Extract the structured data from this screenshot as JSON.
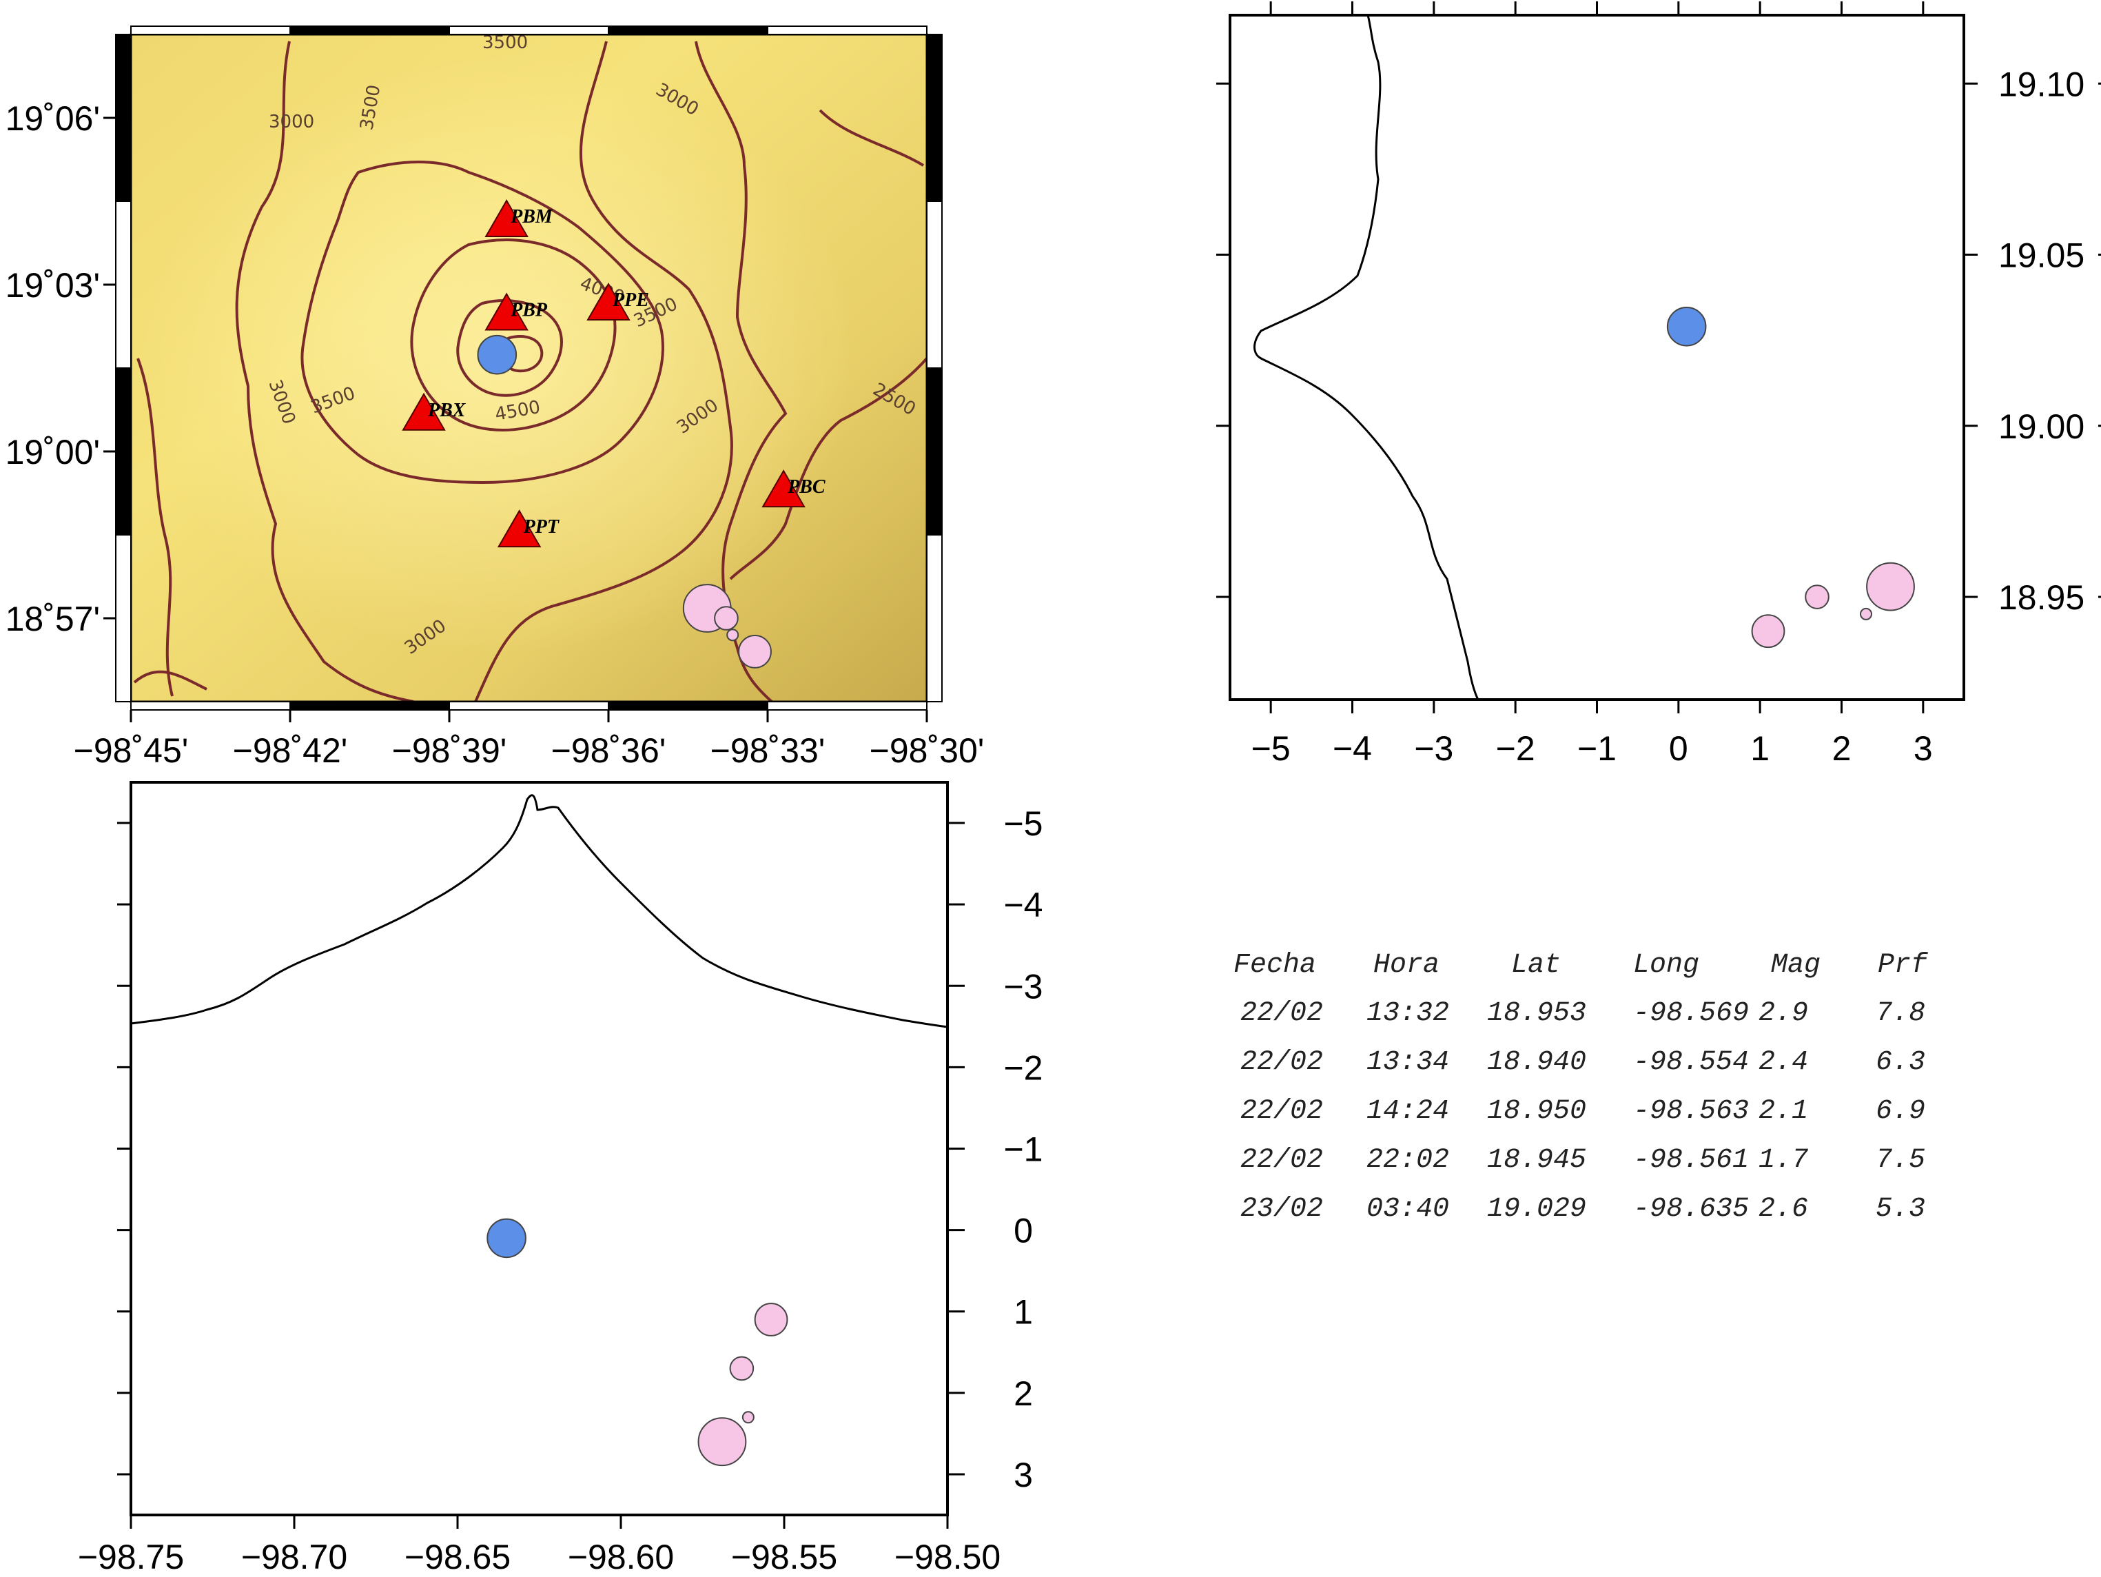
{
  "map": {
    "lon_ticks": [
      "−98˚45'",
      "−98˚42'",
      "−98˚39'",
      "−98˚36'",
      "−98˚33'",
      "−98˚30'"
    ],
    "lat_ticks": [
      "19˚06'",
      "19˚03'",
      "19˚00'",
      "18˚57'"
    ],
    "contour_labels": [
      "3500",
      "3500",
      "3000",
      "3000",
      "4000",
      "3500",
      "3000",
      "3500",
      "4500",
      "3000",
      "2500",
      "3000"
    ],
    "stations": [
      {
        "name": "PBM",
        "lon": -98.632,
        "lat": 19.069
      },
      {
        "name": "PBP",
        "lon": -98.632,
        "lat": 19.041
      },
      {
        "name": "PPE",
        "lon": -98.6,
        "lat": 19.044
      },
      {
        "name": "PBX",
        "lon": -98.658,
        "lat": 19.011
      },
      {
        "name": "PBC",
        "lon": -98.545,
        "lat": 18.988
      },
      {
        "name": "PPT",
        "lon": -98.628,
        "lat": 18.976
      }
    ],
    "station_color": "#ee0000",
    "terrain_color": "#f2dc6a",
    "contour_color": "#7a2a2a"
  },
  "ns_section": {
    "x_ticks": [
      "−5",
      "−4",
      "−3",
      "−2",
      "−1",
      "0",
      "1",
      "2",
      "3"
    ],
    "y_ticks": [
      "19.10",
      "19.05",
      "19.00",
      "18.95"
    ]
  },
  "ew_section": {
    "x_ticks": [
      "−98.75",
      "−98.70",
      "−98.65",
      "−98.60",
      "−98.55",
      "−98.50"
    ],
    "y_ticks": [
      "−5",
      "−4",
      "−3",
      "−2",
      "−1",
      "0",
      "1",
      "2",
      "3"
    ]
  },
  "events": {
    "headers": [
      "Fecha",
      "Hora",
      "Lat",
      "Long",
      "Mag",
      "Prf"
    ],
    "rows": [
      [
        "22/02",
        "13:32",
        "18.953",
        "-98.569",
        "2.9",
        "7.8"
      ],
      [
        "22/02",
        "13:34",
        "18.940",
        "-98.554",
        "2.4",
        "6.3"
      ],
      [
        "22/02",
        "14:24",
        "18.950",
        "-98.563",
        "2.1",
        "6.9"
      ],
      [
        "22/02",
        "22:02",
        "18.945",
        "-98.561",
        "1.7",
        "7.5"
      ],
      [
        "23/02",
        "03:40",
        "19.029",
        "-98.635",
        "2.6",
        "5.3"
      ]
    ],
    "colors": [
      "#f7c6e6",
      "#f7c6e6",
      "#f7c6e6",
      "#f7c6e6",
      "#5b8fe8"
    ]
  }
}
